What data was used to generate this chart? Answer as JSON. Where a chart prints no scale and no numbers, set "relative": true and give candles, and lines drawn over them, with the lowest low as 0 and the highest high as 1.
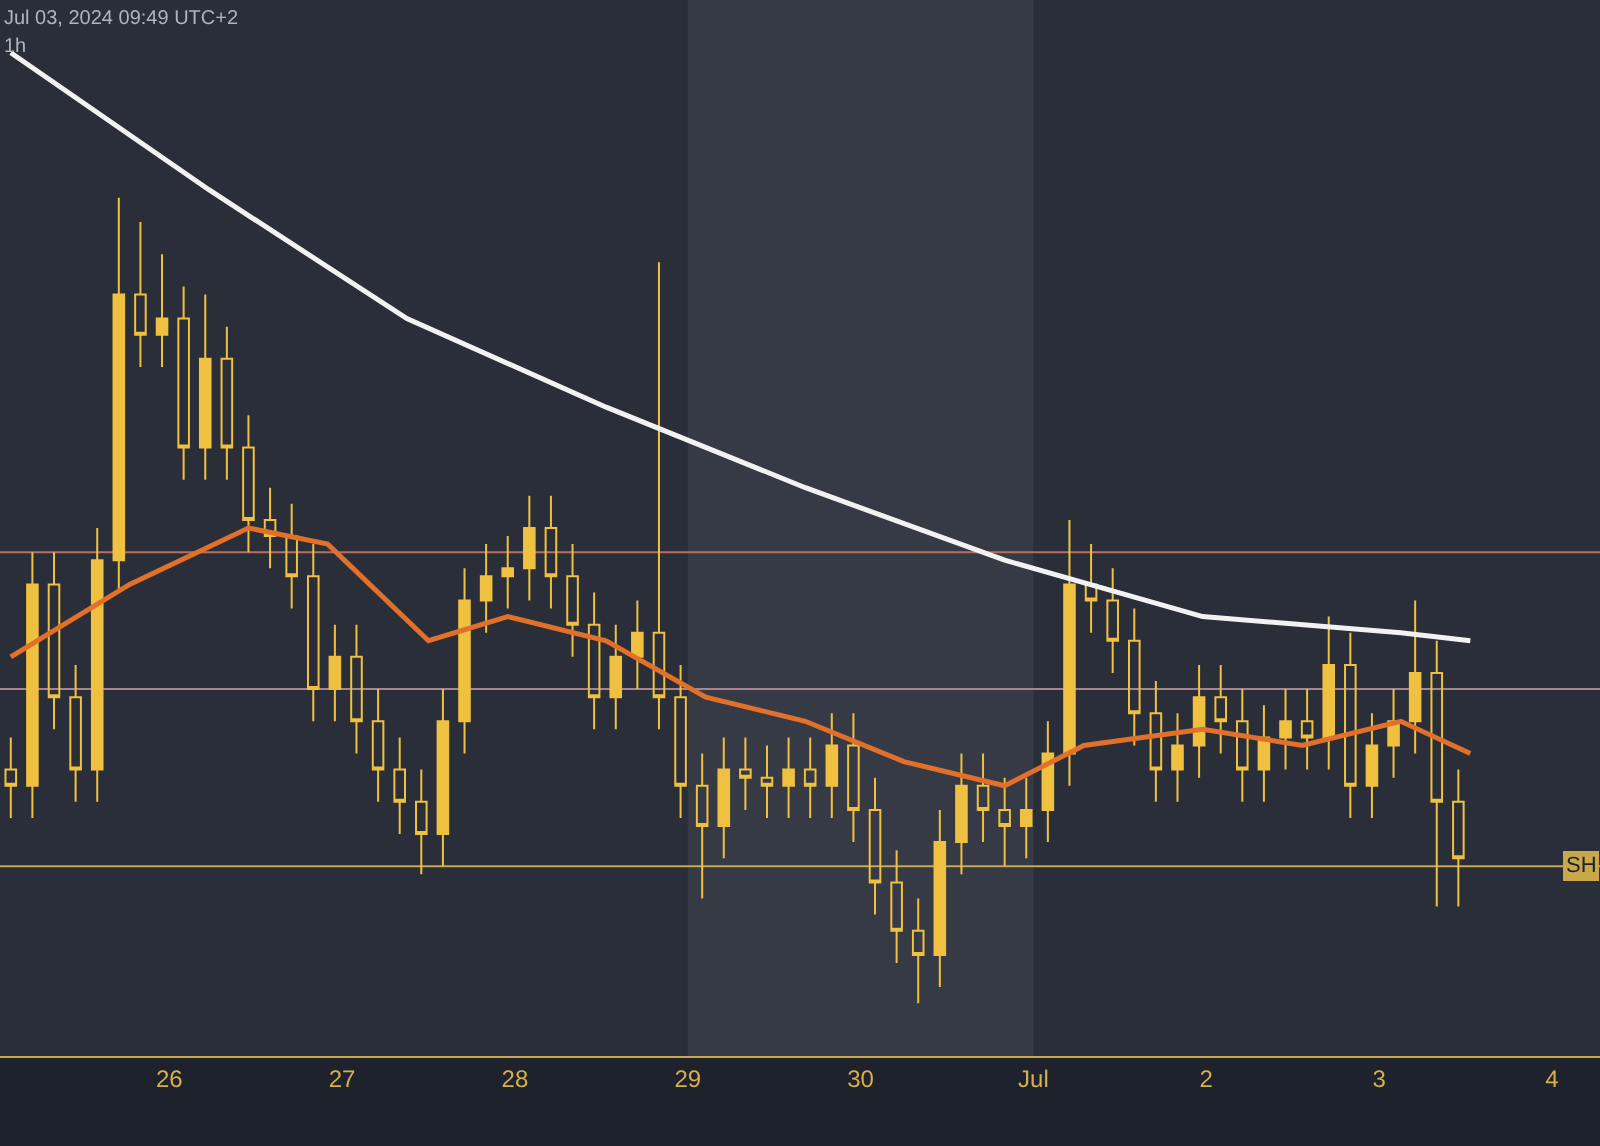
{
  "chart_data": {
    "type": "candlestick",
    "relative": true,
    "color": "#f0c040",
    "x": [
      "2024-06-25T02:00",
      "2024-06-25T05:00",
      "2024-06-25T08:00",
      "2024-06-25T11:00",
      "2024-06-25T14:00",
      "2024-06-25T17:00",
      "2024-06-25T20:00",
      "2024-06-25T23:00",
      "2024-06-26T02:00",
      "2024-06-26T05:00",
      "2024-06-26T08:00",
      "2024-06-26T11:00",
      "2024-06-26T14:00",
      "2024-06-26T17:00",
      "2024-06-26T20:00",
      "2024-06-26T23:00",
      "2024-06-27T02:00",
      "2024-06-27T05:00",
      "2024-06-27T08:00",
      "2024-06-27T11:00",
      "2024-06-27T14:00",
      "2024-06-27T17:00",
      "2024-06-27T20:00",
      "2024-06-27T23:00",
      "2024-06-28T02:00",
      "2024-06-28T05:00",
      "2024-06-28T08:00",
      "2024-06-28T11:00",
      "2024-06-28T14:00",
      "2024-06-28T17:00",
      "2024-06-28T20:00",
      "2024-06-28T23:00",
      "2024-06-29T02:00",
      "2024-06-29T05:00",
      "2024-06-29T08:00",
      "2024-06-29T11:00",
      "2024-06-29T14:00",
      "2024-06-29T17:00",
      "2024-06-29T20:00",
      "2024-06-29T23:00",
      "2024-06-30T02:00",
      "2024-06-30T05:00",
      "2024-06-30T08:00",
      "2024-06-30T11:00",
      "2024-06-30T14:00",
      "2024-06-30T17:00",
      "2024-06-30T20:00",
      "2024-06-30T23:00",
      "2024-07-01T02:00",
      "2024-07-01T05:00",
      "2024-07-01T08:00",
      "2024-07-01T11:00",
      "2024-07-01T14:00",
      "2024-07-01T17:00",
      "2024-07-01T20:00",
      "2024-07-01T23:00",
      "2024-07-02T02:00",
      "2024-07-02T05:00",
      "2024-07-02T08:00",
      "2024-07-02T11:00",
      "2024-07-02T14:00",
      "2024-07-02T17:00",
      "2024-07-02T20:00",
      "2024-07-02T23:00",
      "2024-07-03T02:00",
      "2024-07-03T05:00",
      "2024-07-03T08:00",
      "2024-07-03T11:00"
    ],
    "ohlc": [
      [
        0.29,
        0.33,
        0.23,
        0.27
      ],
      [
        0.27,
        0.56,
        0.23,
        0.52
      ],
      [
        0.52,
        0.56,
        0.34,
        0.38
      ],
      [
        0.38,
        0.42,
        0.25,
        0.29
      ],
      [
        0.29,
        0.59,
        0.25,
        0.55
      ],
      [
        0.55,
        1,
        0.51,
        0.88
      ],
      [
        0.88,
        0.97,
        0.79,
        0.83
      ],
      [
        0.83,
        0.93,
        0.79,
        0.85
      ],
      [
        0.85,
        0.89,
        0.65,
        0.69
      ],
      [
        0.69,
        0.88,
        0.65,
        0.8
      ],
      [
        0.8,
        0.84,
        0.65,
        0.69
      ],
      [
        0.69,
        0.73,
        0.56,
        0.6
      ],
      [
        0.6,
        0.64,
        0.54,
        0.58
      ],
      [
        0.58,
        0.62,
        0.49,
        0.53
      ],
      [
        0.53,
        0.57,
        0.35,
        0.39
      ],
      [
        0.39,
        0.47,
        0.35,
        0.43
      ],
      [
        0.43,
        0.47,
        0.31,
        0.35
      ],
      [
        0.35,
        0.39,
        0.25,
        0.29
      ],
      [
        0.29,
        0.33,
        0.21,
        0.25
      ],
      [
        0.25,
        0.29,
        0.16,
        0.21
      ],
      [
        0.21,
        0.39,
        0.17,
        0.35
      ],
      [
        0.35,
        0.54,
        0.31,
        0.5
      ],
      [
        0.5,
        0.57,
        0.46,
        0.53
      ],
      [
        0.53,
        0.58,
        0.49,
        0.54
      ],
      [
        0.54,
        0.63,
        0.5,
        0.59
      ],
      [
        0.59,
        0.63,
        0.49,
        0.53
      ],
      [
        0.53,
        0.57,
        0.43,
        0.47
      ],
      [
        0.47,
        0.51,
        0.34,
        0.38
      ],
      [
        0.38,
        0.47,
        0.34,
        0.43
      ],
      [
        0.43,
        0.5,
        0.39,
        0.46
      ],
      [
        0.46,
        0.92,
        0.34,
        0.38
      ],
      [
        0.38,
        0.42,
        0.23,
        0.27
      ],
      [
        0.27,
        0.31,
        0.13,
        0.22
      ],
      [
        0.22,
        0.33,
        0.18,
        0.29
      ],
      [
        0.29,
        0.33,
        0.24,
        0.28
      ],
      [
        0.28,
        0.32,
        0.23,
        0.27
      ],
      [
        0.27,
        0.33,
        0.23,
        0.29
      ],
      [
        0.29,
        0.33,
        0.23,
        0.27
      ],
      [
        0.27,
        0.36,
        0.23,
        0.32
      ],
      [
        0.32,
        0.36,
        0.2,
        0.24
      ],
      [
        0.24,
        0.28,
        0.11,
        0.15
      ],
      [
        0.15,
        0.19,
        0.05,
        0.09
      ],
      [
        0.09,
        0.13,
        0,
        0.06
      ],
      [
        0.06,
        0.24,
        0.02,
        0.2
      ],
      [
        0.2,
        0.31,
        0.16,
        0.27
      ],
      [
        0.27,
        0.31,
        0.2,
        0.24
      ],
      [
        0.24,
        0.28,
        0.17,
        0.22
      ],
      [
        0.22,
        0.28,
        0.18,
        0.24
      ],
      [
        0.24,
        0.35,
        0.2,
        0.31
      ],
      [
        0.31,
        0.6,
        0.27,
        0.52
      ],
      [
        0.52,
        0.57,
        0.46,
        0.5
      ],
      [
        0.5,
        0.54,
        0.41,
        0.45
      ],
      [
        0.45,
        0.49,
        0.32,
        0.36
      ],
      [
        0.36,
        0.4,
        0.25,
        0.29
      ],
      [
        0.29,
        0.36,
        0.25,
        0.32
      ],
      [
        0.32,
        0.42,
        0.28,
        0.38
      ],
      [
        0.38,
        0.42,
        0.31,
        0.35
      ],
      [
        0.35,
        0.39,
        0.25,
        0.29
      ],
      [
        0.29,
        0.37,
        0.25,
        0.33
      ],
      [
        0.33,
        0.39,
        0.29,
        0.35
      ],
      [
        0.35,
        0.39,
        0.29,
        0.33
      ],
      [
        0.33,
        0.48,
        0.29,
        0.42
      ],
      [
        0.42,
        0.46,
        0.23,
        0.27
      ],
      [
        0.27,
        0.36,
        0.23,
        0.32
      ],
      [
        0.32,
        0.39,
        0.28,
        0.35
      ],
      [
        0.35,
        0.5,
        0.31,
        0.41
      ],
      [
        0.41,
        0.45,
        0.12,
        0.25
      ],
      [
        0.25,
        0.29,
        0.12,
        0.18
      ]
    ],
    "series": [
      {
        "type": "line",
        "color": "#f2f2f2",
        "x": [
          "2024-06-25T02:00",
          "2024-06-26T05:30",
          "2024-06-27T09:00",
          "2024-06-28T12:40",
          "2024-06-29T16:20",
          "2024-06-30T20:00",
          "2024-07-01T23:30",
          "2024-07-03T03:00",
          "2024-07-03T12:40"
        ],
        "values": [
          1.18,
          1.01,
          0.85,
          0.74,
          0.64,
          0.55,
          0.48,
          0.46,
          0.45
        ]
      },
      {
        "type": "line",
        "color": "#e0702a",
        "x": [
          "2024-06-25T02:00",
          "2024-06-25T18:30",
          "2024-06-26T11:00",
          "2024-06-26T22:00",
          "2024-06-27T12:00",
          "2024-06-27T23:00",
          "2024-06-28T12:40",
          "2024-06-29T02:30",
          "2024-06-29T16:20",
          "2024-06-30T06:00",
          "2024-06-30T20:00",
          "2024-07-01T07:00",
          "2024-07-01T23:30",
          "2024-07-02T13:20",
          "2024-07-03T03:00",
          "2024-07-03T12:40"
        ],
        "values": [
          0.43,
          0.52,
          0.59,
          0.57,
          0.45,
          0.48,
          0.45,
          0.38,
          0.35,
          0.3,
          0.27,
          0.32,
          0.34,
          0.32,
          0.35,
          0.31
        ]
      }
    ],
    "ref_lines": [
      {
        "axis": "y",
        "value": 0.56,
        "color": "#b8705e"
      },
      {
        "axis": "y",
        "value": 0.39,
        "color": "#a88490"
      },
      {
        "axis": "y",
        "value": 0.17,
        "label": "SH",
        "color": "#c8a84a"
      }
    ],
    "bands": [
      {
        "axis": "x",
        "from": "2024-06-29",
        "to": "2024-07-01",
        "color": "#363a45"
      }
    ],
    "xlim": [
      "2024-06-25T00:30",
      "2024-07-04T06:40"
    ],
    "xticks": [
      {
        "value": "2024-06-26",
        "label": "26"
      },
      {
        "value": "2024-06-27",
        "label": "27"
      },
      {
        "value": "2024-06-28",
        "label": "28"
      },
      {
        "value": "2024-06-29",
        "label": "29"
      },
      {
        "value": "2024-06-30",
        "label": "30"
      },
      {
        "value": "2024-07-01",
        "label": "Jul"
      },
      {
        "value": "2024-07-02",
        "label": "2"
      },
      {
        "value": "2024-07-03",
        "label": "3"
      },
      {
        "value": "2024-07-04",
        "label": "4"
      }
    ],
    "annotations": [
      "Jul 03, 2024 09:49 UTC+2",
      "1h"
    ]
  }
}
